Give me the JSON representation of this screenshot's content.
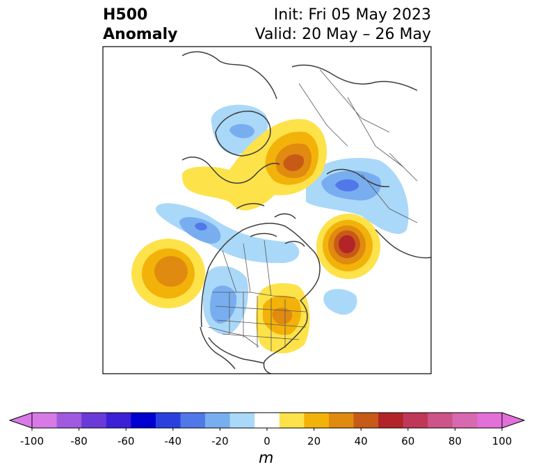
{
  "header": {
    "title_line1": "H500",
    "title_line2": "Anomaly",
    "init": "Init: Fri 05 May 2023",
    "valid": "Valid: 20 May – 26 May"
  },
  "colorbar": {
    "unit": "m",
    "ticks": [
      "-100",
      "-80",
      "-60",
      "-40",
      "-20",
      "0",
      "20",
      "40",
      "60",
      "80",
      "100"
    ],
    "colors": [
      "#d77ae6",
      "#a05ae0",
      "#6a3ad8",
      "#3b20d6",
      "#0000d0",
      "#2a40de",
      "#5078e8",
      "#78aef0",
      "#aad8f8",
      "#ffffff",
      "#fde24a",
      "#f2b20a",
      "#e08a10",
      "#c85a18",
      "#b22428",
      "#c03858",
      "#cc5488",
      "#d868b0",
      "#e270d8"
    ],
    "range": [
      -100,
      100
    ],
    "extend": "both"
  },
  "map_colors": {
    "land_border": "#3a3a3a",
    "frame": "#000000"
  }
}
